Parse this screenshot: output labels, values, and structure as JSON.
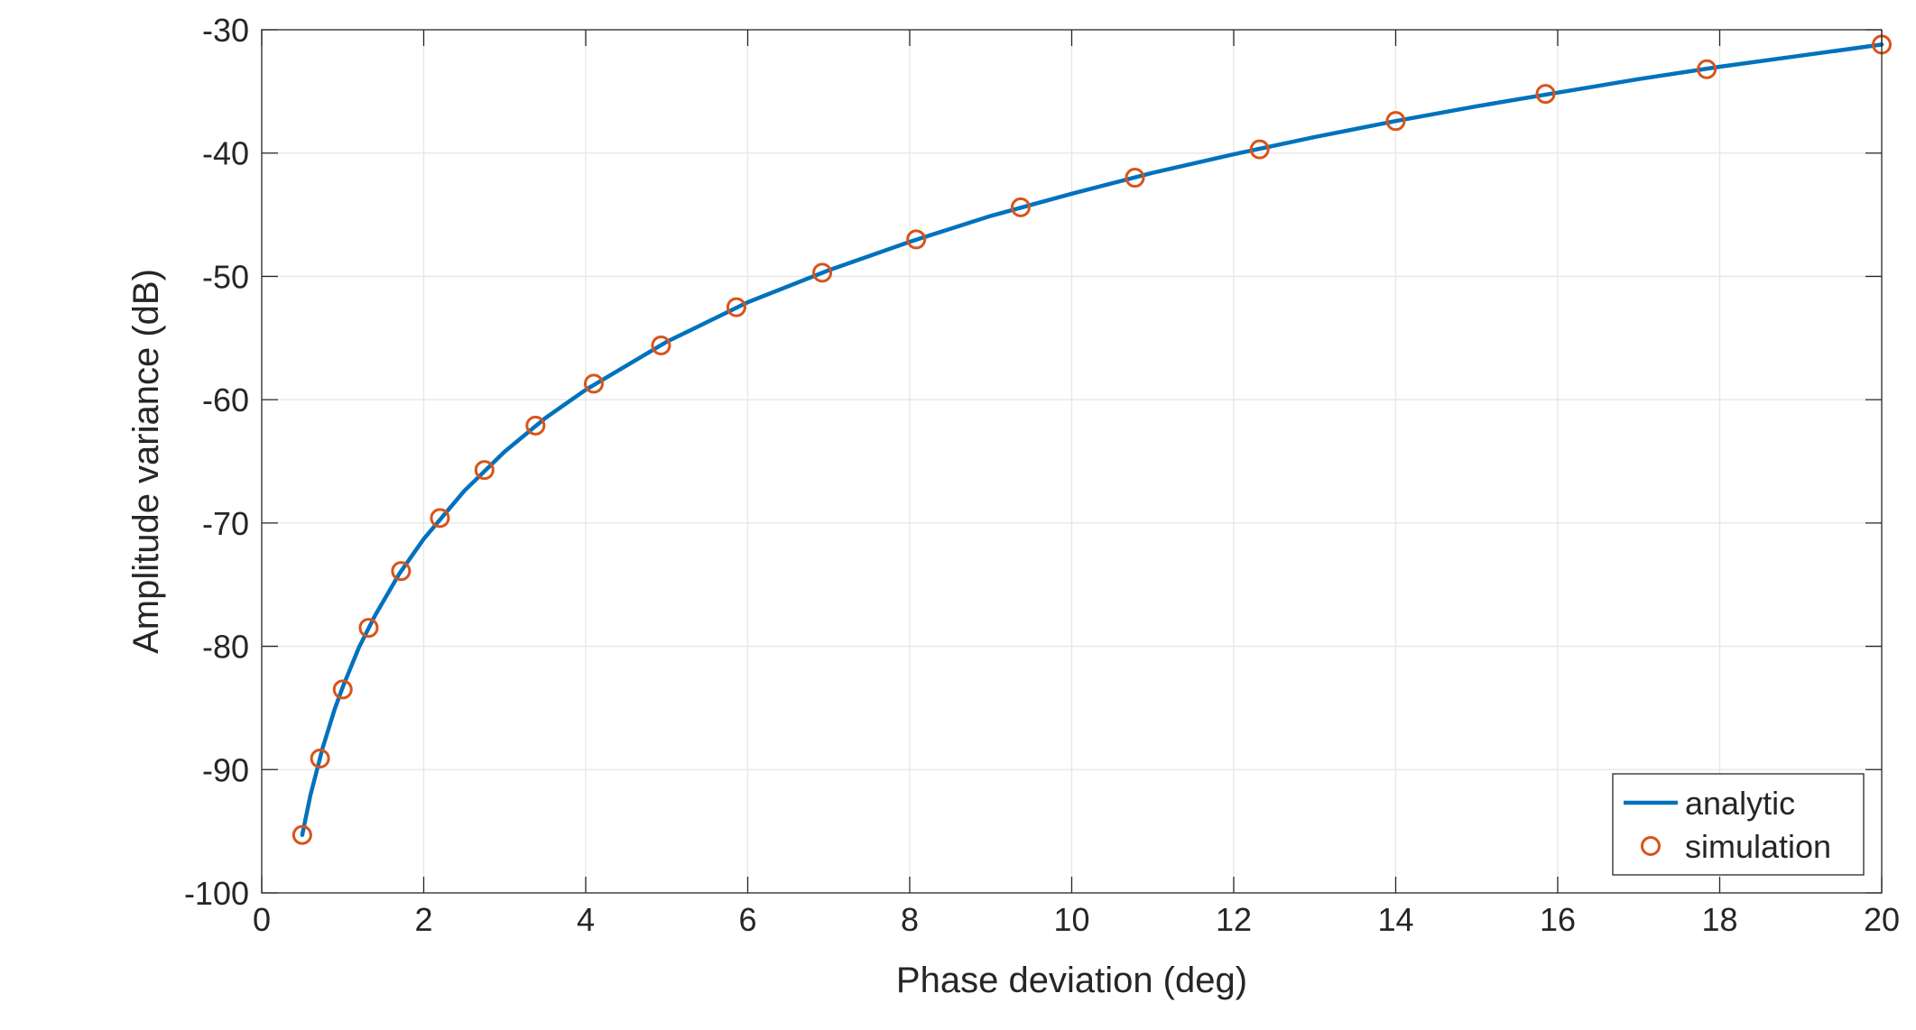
{
  "chart_data": {
    "type": "line",
    "title": "",
    "xlabel": "Phase deviation (deg)",
    "ylabel": "Amplitude variance (dB)",
    "xlim": [
      0,
      20
    ],
    "ylim": [
      -100,
      -30
    ],
    "xticks": [
      0,
      2,
      4,
      6,
      8,
      10,
      12,
      14,
      16,
      18,
      20
    ],
    "yticks": [
      -100,
      -90,
      -80,
      -70,
      -60,
      -50,
      -40,
      -30
    ],
    "grid": true,
    "legend_position": "bottom-right",
    "series": [
      {
        "name": "analytic",
        "style": "line",
        "color": "#0072BD",
        "x": [
          0.5,
          0.6,
          0.75,
          0.9,
          1.0,
          1.2,
          1.4,
          1.7,
          2.0,
          2.5,
          3.0,
          3.5,
          4.0,
          5.0,
          6.0,
          7.0,
          8.0,
          9.0,
          10.0,
          11.0,
          12.0,
          13.0,
          14.0,
          15.0,
          16.0,
          17.0,
          18.0,
          19.0,
          20.0
        ],
        "y": [
          -95.3,
          -92.1,
          -88.3,
          -85.1,
          -83.3,
          -80.1,
          -77.5,
          -74.1,
          -71.3,
          -67.4,
          -64.2,
          -61.5,
          -59.2,
          -55.3,
          -52.1,
          -49.5,
          -47.2,
          -45.1,
          -43.3,
          -41.6,
          -40.1,
          -38.7,
          -37.4,
          -36.2,
          -35.1,
          -34.0,
          -33.0,
          -32.1,
          -31.2
        ]
      },
      {
        "name": "simulation",
        "style": "marker",
        "color": "#D95319",
        "x": [
          0.5,
          0.72,
          1.0,
          1.32,
          1.72,
          2.2,
          2.75,
          3.38,
          4.1,
          4.93,
          5.86,
          6.92,
          8.08,
          9.37,
          10.78,
          12.32,
          14.0,
          15.85,
          17.84,
          20.0
        ],
        "y": [
          -95.3,
          -89.1,
          -83.5,
          -78.5,
          -73.9,
          -69.6,
          -65.7,
          -62.1,
          -58.7,
          -55.6,
          -52.5,
          -49.7,
          -47.0,
          -44.4,
          -42.0,
          -39.7,
          -37.4,
          -35.2,
          -33.2,
          -31.2
        ]
      }
    ]
  }
}
